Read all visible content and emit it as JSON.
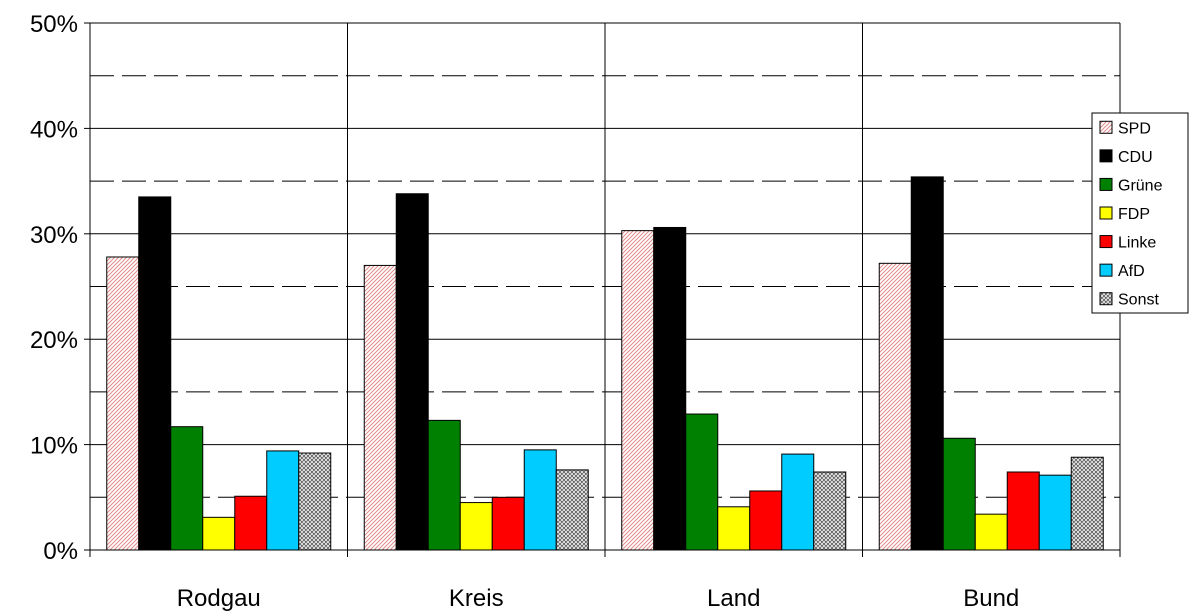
{
  "chart_data": {
    "type": "bar",
    "title": "",
    "xlabel": "",
    "ylabel": "",
    "ylim": [
      0,
      50
    ],
    "y_ticks": [
      "0%",
      "10%",
      "20%",
      "30%",
      "40%",
      "50%"
    ],
    "y_tick_values": [
      0,
      10,
      20,
      30,
      40,
      50
    ],
    "minor_gridlines": [
      5,
      15,
      25,
      35,
      45
    ],
    "grid": true,
    "legend_position": "right",
    "categories": [
      "Rodgau",
      "Kreis",
      "Land",
      "Bund"
    ],
    "series": [
      {
        "name": "SPD",
        "color": "#f4c7c7",
        "pattern": "hatch-red",
        "values": [
          27.8,
          27.0,
          30.3,
          27.2
        ]
      },
      {
        "name": "CDU",
        "color": "#000000",
        "pattern": "solid",
        "values": [
          33.5,
          33.8,
          30.6,
          35.4
        ]
      },
      {
        "name": "Grüne",
        "color": "#008000",
        "pattern": "solid",
        "values": [
          11.7,
          12.3,
          12.9,
          10.6
        ]
      },
      {
        "name": "FDP",
        "color": "#ffff00",
        "pattern": "solid",
        "values": [
          3.1,
          4.5,
          4.1,
          3.4
        ]
      },
      {
        "name": "Linke",
        "color": "#ff0000",
        "pattern": "solid",
        "values": [
          5.1,
          5.0,
          5.6,
          7.4
        ]
      },
      {
        "name": "AfD",
        "color": "#00ccff",
        "pattern": "solid",
        "values": [
          9.4,
          9.5,
          9.1,
          7.1
        ]
      },
      {
        "name": "Sonst",
        "color": "#c0c0c0",
        "pattern": "hatch-grey",
        "values": [
          9.2,
          7.6,
          7.4,
          8.8
        ]
      }
    ]
  }
}
